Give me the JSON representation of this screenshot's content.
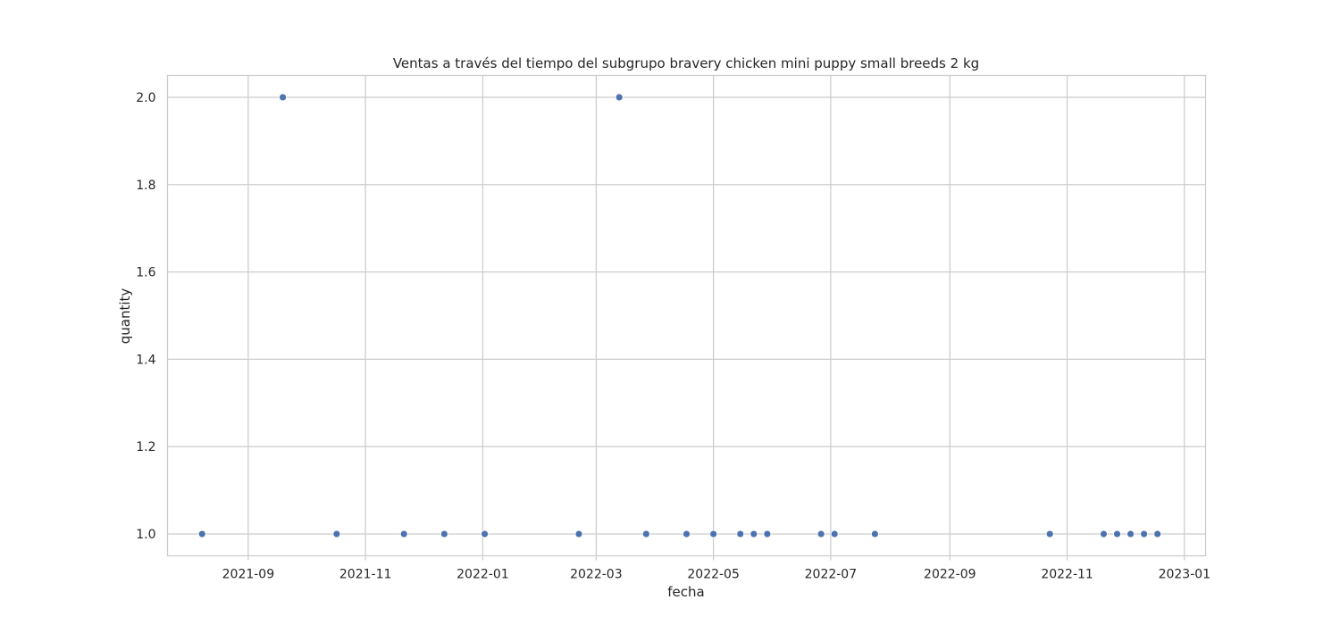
{
  "chart_data": {
    "type": "scatter",
    "title": "Ventas a través del tiempo del subgrupo bravery chicken mini puppy small breeds 2 kg",
    "xlabel": "fecha",
    "ylabel": "quantity",
    "x_ticks": [
      "2021-09-01",
      "2021-11-01",
      "2022-01-01",
      "2022-03-01",
      "2022-05-01",
      "2022-07-01",
      "2022-09-01",
      "2022-11-01",
      "2023-01-01"
    ],
    "x_tick_labels": [
      "2021-09",
      "2021-11",
      "2022-01",
      "2022-03",
      "2022-05",
      "2022-07",
      "2022-09",
      "2022-11",
      "2023-01"
    ],
    "y_ticks": [
      1.0,
      1.2,
      1.4,
      1.6,
      1.8,
      2.0
    ],
    "y_tick_labels": [
      "1.0",
      "1.2",
      "1.4",
      "1.6",
      "1.8",
      "2.0"
    ],
    "xlim": [
      "2021-07-21",
      "2023-01-12"
    ],
    "ylim": [
      0.95,
      2.05
    ],
    "grid": true,
    "marker_color": "#4c72b0",
    "points": [
      {
        "x": "2021-08-08",
        "y": 1
      },
      {
        "x": "2021-09-19",
        "y": 2
      },
      {
        "x": "2021-10-17",
        "y": 1
      },
      {
        "x": "2021-11-21",
        "y": 1
      },
      {
        "x": "2021-12-12",
        "y": 1
      },
      {
        "x": "2022-01-02",
        "y": 1
      },
      {
        "x": "2022-02-20",
        "y": 1
      },
      {
        "x": "2022-03-13",
        "y": 2
      },
      {
        "x": "2022-03-27",
        "y": 1
      },
      {
        "x": "2022-04-17",
        "y": 1
      },
      {
        "x": "2022-05-01",
        "y": 1
      },
      {
        "x": "2022-05-15",
        "y": 1
      },
      {
        "x": "2022-05-22",
        "y": 1
      },
      {
        "x": "2022-05-29",
        "y": 1
      },
      {
        "x": "2022-06-26",
        "y": 1
      },
      {
        "x": "2022-07-03",
        "y": 1
      },
      {
        "x": "2022-07-24",
        "y": 1
      },
      {
        "x": "2022-10-23",
        "y": 1
      },
      {
        "x": "2022-11-20",
        "y": 1
      },
      {
        "x": "2022-11-27",
        "y": 1
      },
      {
        "x": "2022-12-04",
        "y": 1
      },
      {
        "x": "2022-12-11",
        "y": 1
      },
      {
        "x": "2022-12-18",
        "y": 1
      }
    ]
  }
}
